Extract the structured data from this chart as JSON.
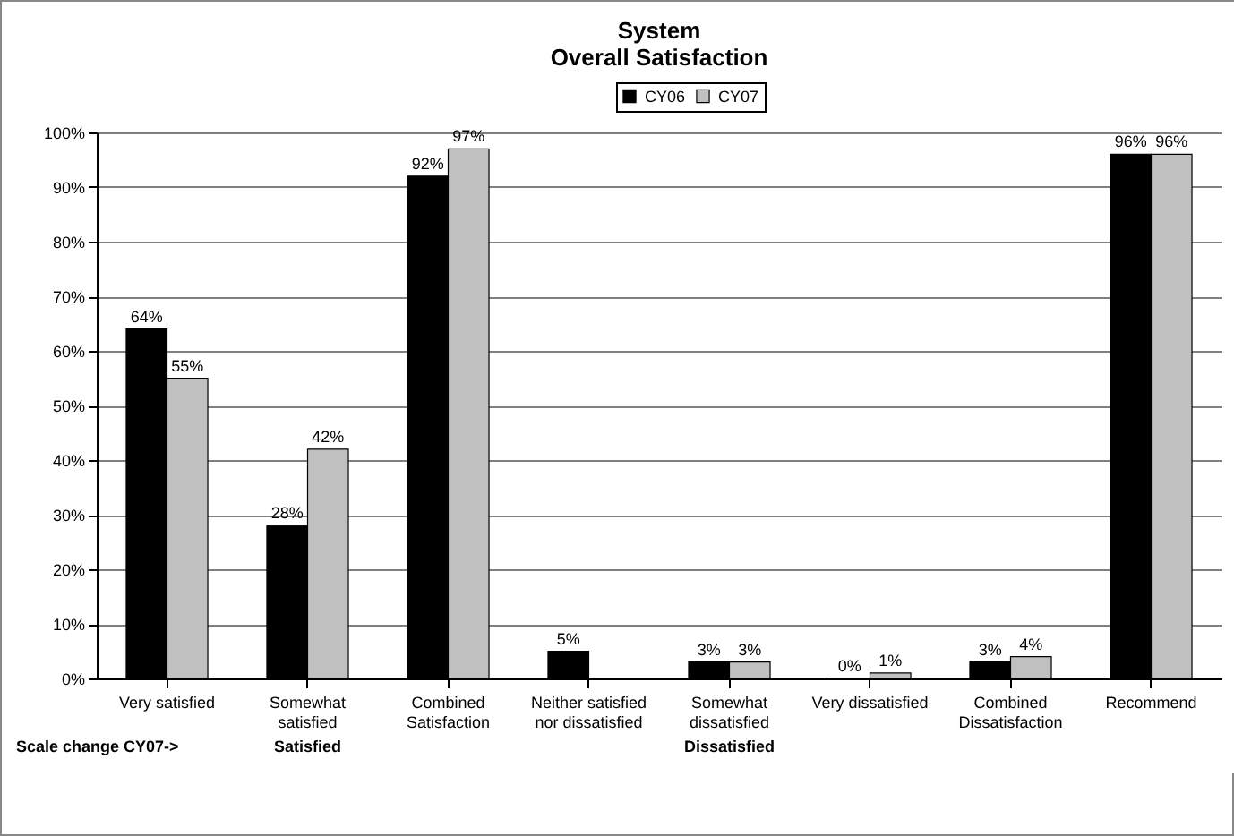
{
  "chart_data": {
    "type": "bar",
    "title": "System\nOverall Satisfaction",
    "categories": [
      "Very satisfied",
      "Somewhat satisfied",
      "Combined Satisfaction",
      "Neither satisfied nor dissatisfied",
      "Somewhat dissatisfied",
      "Very dissatisfied",
      "Combined Dissatisfaction",
      "Recommend"
    ],
    "series": [
      {
        "name": "CY06",
        "color": "#000000",
        "values": [
          64,
          28,
          92,
          5,
          3,
          0,
          3,
          96
        ],
        "value_labels": [
          "64%",
          "28%",
          "92%",
          "5%",
          "3%",
          "0%",
          "3%",
          "96%"
        ]
      },
      {
        "name": "CY07",
        "color": "#c0c0c0",
        "values": [
          55,
          42,
          97,
          null,
          3,
          1,
          4,
          96
        ],
        "value_labels": [
          "55%",
          "42%",
          "97%",
          null,
          "3%",
          "1%",
          "4%",
          "96%"
        ]
      }
    ],
    "ylim": [
      0,
      100
    ],
    "yticks": [
      {
        "value": 0,
        "label": "0%"
      },
      {
        "value": 10,
        "label": "10%"
      },
      {
        "value": 20,
        "label": "20%"
      },
      {
        "value": 30,
        "label": "30%"
      },
      {
        "value": 40,
        "label": "40%"
      },
      {
        "value": 50,
        "label": "50%"
      },
      {
        "value": 60,
        "label": "60%"
      },
      {
        "value": 70,
        "label": "70%"
      },
      {
        "value": 80,
        "label": "80%"
      },
      {
        "value": 90,
        "label": "90%"
      },
      {
        "value": 100,
        "label": "100%"
      }
    ],
    "grid": "y",
    "legend": "top",
    "annotations": [
      "Scale change CY07->",
      "Satisfied",
      "Dissatisfied"
    ]
  }
}
